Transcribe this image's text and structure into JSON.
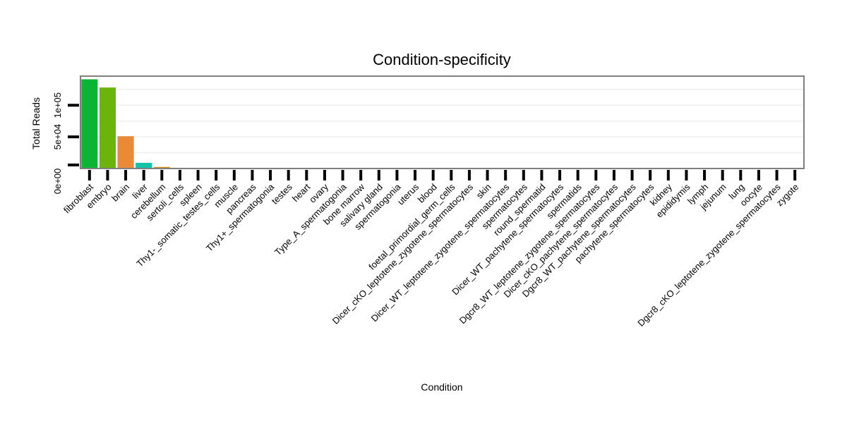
{
  "chart_data": {
    "type": "bar",
    "title": "Condition-specificity",
    "xlabel": "Condition",
    "ylabel": "Total Reads",
    "ylim": [
      0,
      146000
    ],
    "y_ticks": [
      0,
      50000,
      100000
    ],
    "y_tick_labels": [
      "0e+00",
      "5e+04",
      "1e+05"
    ],
    "grid": true,
    "legend": "none",
    "categories": [
      "fibroblast",
      "embryo",
      "brain",
      "liver",
      "cerebellum",
      "sertoli_cells",
      "spleen",
      "Thy1-_somatic_testes_cells",
      "muscle",
      "pancreas",
      "Thy1+_spermatogonia",
      "testes",
      "heart",
      "ovary",
      "Type_A_spermatogonia",
      "bone marrow",
      "salivary gland",
      "spermatogonia",
      "uterus",
      "blood",
      "foetal_primordial_germ_cells",
      "Dicer_cKO_leptotene_zygotene_spermatocytes",
      "skin",
      "Dicer_WT_leptotene_zygotene_spermatocytes",
      "spermatocytes",
      "round_spermatid",
      "Dicer_WT_pachytene_spermatocytes",
      "spermatids",
      "Dgcr8_WT_leptotene_zygotene_spermatocytes",
      "Dicer_cKO_pachytene_spermatocytes",
      "Dgcr8_WT_pachytene_spermatocytes",
      "pachytene_spermatocytes",
      "kidney",
      "epididymis",
      "lymph",
      "jejunum",
      "lung",
      "oocyte",
      "Dgcr8_cKO_leptotene_zygotene_spermatocytes",
      "zygote"
    ],
    "values": [
      141000,
      128000,
      51000,
      9000,
      2500,
      1000,
      700,
      200,
      120,
      80,
      60,
      50,
      40,
      30,
      25,
      20,
      18,
      15,
      12,
      10,
      8,
      7,
      6,
      5,
      5,
      4,
      4,
      3,
      3,
      3,
      2,
      2,
      2,
      1,
      1,
      1,
      1,
      1,
      1,
      1
    ],
    "colors": [
      "#0bb534",
      "#6ab40c",
      "#ea8a39",
      "#12c3a8",
      "#d4901c",
      "#8a7dd8",
      "#d570c8",
      "#c8c8c8",
      "#c8c8c8",
      "#c8c8c8",
      "#c8c8c8",
      "#c8c8c8",
      "#c8c8c8",
      "#c8c8c8",
      "#c8c8c8",
      "#c8c8c8",
      "#c8c8c8",
      "#c8c8c8",
      "#c8c8c8",
      "#c8c8c8",
      "#c8c8c8",
      "#c8c8c8",
      "#c8c8c8",
      "#c8c8c8",
      "#c8c8c8",
      "#c8c8c8",
      "#c8c8c8",
      "#c8c8c8",
      "#c8c8c8",
      "#c8c8c8",
      "#c8c8c8",
      "#c8c8c8",
      "#c8c8c8",
      "#c8c8c8",
      "#c8c8c8",
      "#c8c8c8",
      "#c8c8c8",
      "#c8c8c8",
      "#c8c8c8",
      "#c8c8c8"
    ]
  }
}
